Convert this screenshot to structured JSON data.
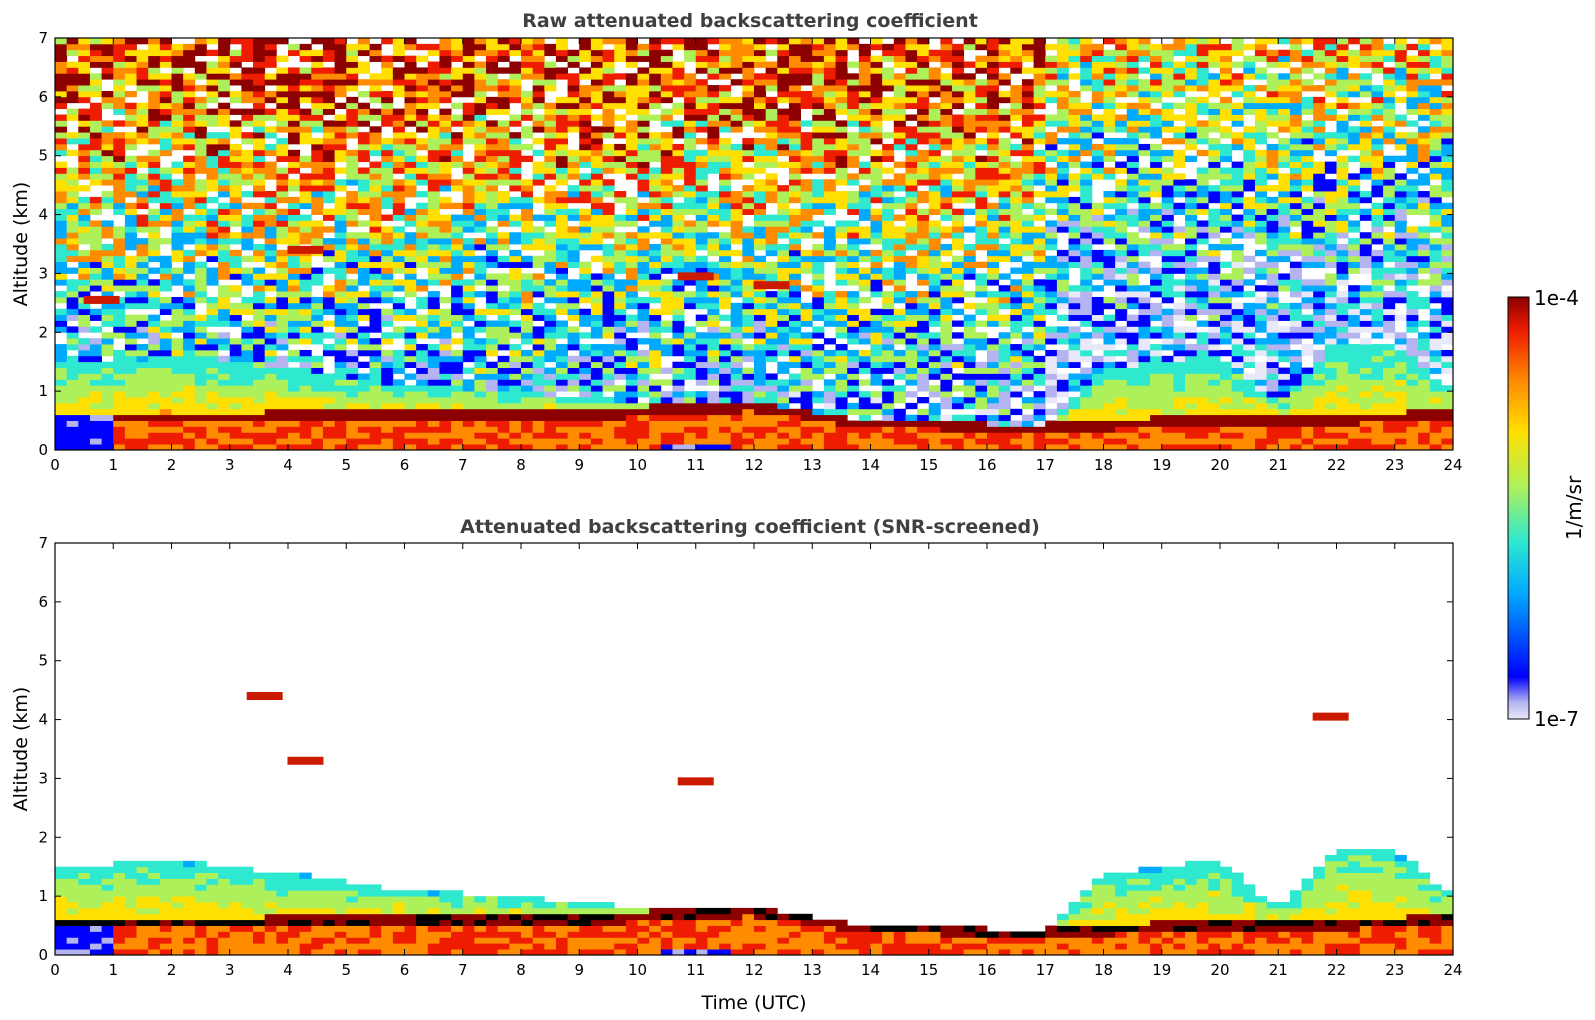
{
  "chart_data": [
    {
      "type": "heatmap",
      "title": "Raw attenuated backscattering coefficient",
      "xlabel": "",
      "ylabel": "Altitude (km)",
      "xlim": [
        0,
        24
      ],
      "ylim": [
        0,
        7
      ],
      "x_ticks": [
        "0",
        "1",
        "2",
        "3",
        "4",
        "5",
        "6",
        "7",
        "8",
        "9",
        "10",
        "11",
        "12",
        "13",
        "14",
        "15",
        "16",
        "17",
        "18",
        "19",
        "20",
        "21",
        "22",
        "23",
        "24"
      ],
      "y_ticks": [
        "0",
        "1",
        "2",
        "3",
        "4",
        "5",
        "6",
        "7"
      ],
      "boundary_layer_top_km": [
        [
          0,
          1.5
        ],
        [
          2,
          1.6
        ],
        [
          4,
          1.4
        ],
        [
          6,
          1.1
        ],
        [
          8,
          1.0
        ],
        [
          10,
          0.8
        ],
        [
          12,
          0.8
        ],
        [
          14,
          0.5
        ],
        [
          16,
          0.45
        ],
        [
          17,
          0.4
        ],
        [
          18,
          1.4
        ],
        [
          20,
          1.6
        ],
        [
          21,
          0.8
        ],
        [
          22,
          1.8
        ],
        [
          23,
          1.8
        ],
        [
          24,
          1.0
        ]
      ],
      "aerosol_layer_km": [
        [
          3,
          0.55
        ],
        [
          6,
          0.6
        ],
        [
          9,
          0.6
        ],
        [
          12,
          0.75
        ],
        [
          13,
          0.6
        ],
        [
          14,
          0.45
        ],
        [
          15,
          0.45
        ],
        [
          16,
          0.4
        ],
        [
          17,
          0.4
        ],
        [
          20,
          0.5
        ],
        [
          23,
          0.55
        ],
        [
          24,
          0.6
        ]
      ],
      "elevated_features": [
        {
          "t": 11.0,
          "alt_km": 2.95
        },
        {
          "t": 4.3,
          "alt_km": 3.4
        },
        {
          "t": 0.8,
          "alt_km": 2.55
        },
        {
          "t": 12.3,
          "alt_km": 2.8
        }
      ],
      "noise_dominated_above_km": 2.0
    },
    {
      "type": "heatmap",
      "title": "Attenuated backscattering coefficient (SNR-screened)",
      "xlabel": "Time (UTC)",
      "ylabel": "Altitude (km)",
      "xlim": [
        0,
        24
      ],
      "ylim": [
        0,
        7
      ],
      "x_ticks": [
        "0",
        "1",
        "2",
        "3",
        "4",
        "5",
        "6",
        "7",
        "8",
        "9",
        "10",
        "11",
        "12",
        "13",
        "14",
        "15",
        "16",
        "17",
        "18",
        "19",
        "20",
        "21",
        "22",
        "23",
        "24"
      ],
      "y_ticks": [
        "0",
        "1",
        "2",
        "3",
        "4",
        "5",
        "6",
        "7"
      ],
      "screened_above_km": 2.0,
      "isolated_features": [
        {
          "t": 3.6,
          "alt_km": 4.4
        },
        {
          "t": 4.3,
          "alt_km": 3.3
        },
        {
          "t": 11.0,
          "alt_km": 2.95
        },
        {
          "t": 21.9,
          "alt_km": 4.05
        }
      ]
    }
  ],
  "colorbar": {
    "min_label": "1e-7",
    "max_label": "1e-4",
    "unit": "1/m/sr",
    "scale": "log",
    "colors": [
      "#e8e8f8",
      "#b4b4f0",
      "#0000ff",
      "#00aaff",
      "#2ee8d0",
      "#aef05a",
      "#ffe000",
      "#ff8c00",
      "#ee1c00",
      "#8c0000"
    ]
  }
}
